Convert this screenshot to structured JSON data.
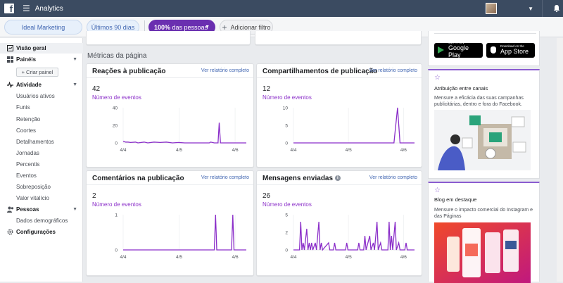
{
  "topbar": {
    "app_title": "Analytics",
    "brand_color": "#3b4b61"
  },
  "filters": {
    "source": "Ideal Marketing",
    "date_range": "Últimos 90 dias",
    "audience_bold": "100%",
    "audience_rest": " das pessoas",
    "add_filter": "Adicionar filtro"
  },
  "sidebar": {
    "overview": "Visão geral",
    "dashboards": "Painéis",
    "create_dashboard": "+ Criar painel",
    "activity": "Atividade",
    "activity_items": [
      "Usuários ativos",
      "Funis",
      "Retenção",
      "Coortes",
      "Detalhamentos",
      "Jornadas",
      "Percentis",
      "Eventos",
      "Sobreposição",
      "Valor vitalício"
    ],
    "people": "Pessoas",
    "people_items": [
      "Dados demográficos"
    ],
    "settings": "Configurações"
  },
  "main": {
    "section_title": "Métricas da página",
    "cards": [
      {
        "title": "Reações à publicação",
        "link": "Ver relatório completo",
        "value": "42",
        "metric": "Número de eventos",
        "y_ticks": [
          "40",
          "20",
          "0"
        ],
        "x_ticks": [
          "4/4",
          "4/5",
          "4/6"
        ]
      },
      {
        "title": "Compartilhamentos de publicação",
        "link": "Ver relatório completo",
        "value": "12",
        "metric": "Número de eventos",
        "y_ticks": [
          "10",
          "5",
          "0"
        ],
        "x_ticks": [
          "4/4",
          "4/5",
          "4/6"
        ]
      },
      {
        "title": "Comentários na publicação",
        "link": "Ver relatório completo",
        "value": "2",
        "metric": "Número de eventos",
        "y_ticks": [
          "1",
          "0"
        ],
        "x_ticks": [
          "4/4",
          "4/5",
          "4/6"
        ]
      },
      {
        "title": "Mensagens enviadas",
        "link": "Ver relatório completo",
        "value": "26",
        "metric": "Número de eventos",
        "y_ticks": [
          "5",
          "2",
          "0"
        ],
        "x_ticks": [
          "4/4",
          "4/5",
          "4/6"
        ]
      }
    ]
  },
  "chart_data": [
    {
      "type": "line",
      "x": [
        "4/4",
        "4/5",
        "4/6"
      ],
      "xlim": [
        0,
        100
      ],
      "ylim": [
        0,
        40
      ],
      "series": [
        {
          "values": [
            [
              0,
              2
            ],
            [
              2,
              1
            ],
            [
              4,
              1
            ],
            [
              6,
              0.5
            ],
            [
              10,
              1
            ],
            [
              12,
              0
            ],
            [
              17,
              1
            ],
            [
              20,
              0
            ],
            [
              25,
              1
            ],
            [
              30,
              0.5
            ],
            [
              35,
              1
            ],
            [
              40,
              0
            ],
            [
              45,
              0.5
            ],
            [
              50,
              0
            ],
            [
              60,
              0
            ],
            [
              70,
              0
            ],
            [
              71,
              1
            ],
            [
              74,
              0
            ],
            [
              77,
              0
            ],
            [
              78,
              23
            ],
            [
              79,
              0
            ],
            [
              85,
              0
            ],
            [
              92,
              0
            ],
            [
              100,
              0
            ]
          ]
        }
      ],
      "color": "#8b2fc9"
    },
    {
      "type": "line",
      "x": [
        "4/4",
        "4/5",
        "4/6"
      ],
      "xlim": [
        0,
        100
      ],
      "ylim": [
        0,
        10
      ],
      "series": [
        {
          "values": [
            [
              0,
              0
            ],
            [
              20,
              0
            ],
            [
              40,
              0
            ],
            [
              60,
              0
            ],
            [
              83,
              0
            ],
            [
              86,
              10
            ],
            [
              88,
              0
            ],
            [
              100,
              0
            ]
          ]
        }
      ],
      "color": "#8b2fc9"
    },
    {
      "type": "line",
      "x": [
        "4/4",
        "4/5",
        "4/6"
      ],
      "xlim": [
        0,
        100
      ],
      "ylim": [
        0,
        1
      ],
      "series": [
        {
          "values": [
            [
              0,
              0
            ],
            [
              60,
              0
            ],
            [
              74,
              0
            ],
            [
              75,
              1
            ],
            [
              76,
              0
            ],
            [
              88,
              0
            ],
            [
              89,
              1
            ],
            [
              90,
              0
            ],
            [
              100,
              0
            ]
          ]
        }
      ],
      "color": "#8b2fc9"
    },
    {
      "type": "line",
      "x": [
        "4/4",
        "4/5",
        "4/6"
      ],
      "xlim": [
        0,
        100
      ],
      "ylim": [
        0,
        5
      ],
      "series": [
        {
          "values": [
            [
              0,
              0
            ],
            [
              5,
              0
            ],
            [
              6,
              4
            ],
            [
              7,
              0
            ],
            [
              8,
              1
            ],
            [
              9,
              0
            ],
            [
              11,
              3
            ],
            [
              12,
              0
            ],
            [
              13,
              1
            ],
            [
              14,
              0
            ],
            [
              15,
              1
            ],
            [
              16,
              0
            ],
            [
              18,
              1
            ],
            [
              19,
              0
            ],
            [
              21,
              4
            ],
            [
              22,
              0
            ],
            [
              23,
              1
            ],
            [
              24,
              0
            ],
            [
              29,
              1
            ],
            [
              30,
              0
            ],
            [
              33,
              0
            ],
            [
              34,
              1
            ],
            [
              35,
              0
            ],
            [
              43,
              0
            ],
            [
              44,
              1
            ],
            [
              45,
              0
            ],
            [
              53,
              0
            ],
            [
              54,
              1
            ],
            [
              55,
              0
            ],
            [
              58,
              0
            ],
            [
              59,
              2
            ],
            [
              60,
              0
            ],
            [
              63,
              2
            ],
            [
              64,
              0
            ],
            [
              66,
              1
            ],
            [
              67,
              0
            ],
            [
              69,
              4
            ],
            [
              70,
              0
            ],
            [
              72,
              1
            ],
            [
              73,
              0
            ],
            [
              78,
              0
            ],
            [
              79,
              4
            ],
            [
              80,
              0
            ],
            [
              81,
              2
            ],
            [
              82,
              0
            ],
            [
              84,
              4
            ],
            [
              85,
              0
            ],
            [
              87,
              1
            ],
            [
              88,
              0
            ],
            [
              92,
              0
            ],
            [
              93,
              1
            ],
            [
              94,
              0
            ],
            [
              100,
              0
            ]
          ]
        }
      ],
      "color": "#8b2fc9"
    }
  ],
  "right": {
    "google_small": "GET IT ON",
    "google_big": "Google Play",
    "apple_small": "Download on the",
    "apple_big": "App Store",
    "card1_title": "Atribuição entre canais",
    "card1_text": "Mensure a eficácia das suas campanhas publicitárias, dentro e fora do Facebook.",
    "card2_title": "Blog em destaque",
    "card2_text": "Mensure o impacto comercial do Instagram e das Páginas"
  }
}
